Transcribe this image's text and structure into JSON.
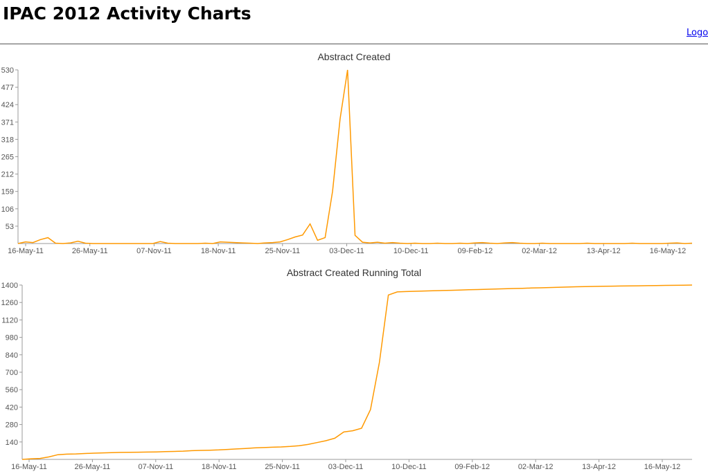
{
  "header": {
    "title": "IPAC 2012 Activity Charts",
    "logout_label": "Logo"
  },
  "colors": {
    "series": "#ff9900",
    "axis": "#999999",
    "text": "#555555",
    "link": "#0000ee"
  },
  "chart_data": [
    {
      "type": "line",
      "title": "Abstract Created",
      "xlabel": "",
      "ylabel": "",
      "ylim": [
        0,
        530
      ],
      "yticks": [
        53,
        106,
        159,
        212,
        265,
        318,
        371,
        424,
        477,
        530
      ],
      "xtick_labels": [
        "16-May-11",
        "26-May-11",
        "07-Nov-11",
        "18-Nov-11",
        "25-Nov-11",
        "03-Dec-11",
        "10-Dec-11",
        "09-Feb-12",
        "02-Mar-12",
        "13-Apr-12",
        "16-May-12"
      ],
      "grid": false,
      "series": [
        {
          "values": [
            0,
            5,
            3,
            12,
            18,
            1,
            0,
            2,
            7,
            1,
            0,
            0,
            0,
            0,
            0,
            0,
            0,
            0,
            0,
            6,
            1,
            0,
            0,
            0,
            0,
            1,
            0,
            5,
            4,
            3,
            2,
            1,
            0,
            2,
            3,
            5,
            12,
            20,
            26,
            60,
            10,
            18,
            160,
            380,
            530,
            25,
            4,
            2,
            4,
            1,
            3,
            1,
            0,
            1,
            0,
            0,
            1,
            0,
            0,
            1,
            0,
            2,
            3,
            1,
            0,
            2,
            3,
            1,
            0,
            0,
            1,
            0,
            0,
            0,
            0,
            0,
            1,
            0,
            0,
            0,
            0,
            0,
            1,
            0,
            0,
            0,
            0,
            1,
            2,
            0,
            1
          ]
        }
      ]
    },
    {
      "type": "line",
      "title": "Abstract Created Running Total",
      "xlabel": "",
      "ylabel": "",
      "ylim": [
        0,
        1400
      ],
      "yticks": [
        140,
        280,
        420,
        560,
        700,
        840,
        980,
        1120,
        1260,
        1400
      ],
      "xtick_labels": [
        "16-May-11",
        "26-May-11",
        "07-Nov-11",
        "18-Nov-11",
        "25-Nov-11",
        "03-Dec-11",
        "10-Dec-11",
        "09-Feb-12",
        "02-Mar-12",
        "13-Apr-12",
        "16-May-12"
      ],
      "grid": false,
      "series": [
        {
          "values": [
            0,
            5,
            8,
            20,
            38,
            42,
            44,
            47,
            50,
            52,
            54,
            56,
            57,
            58,
            59,
            60,
            62,
            64,
            66,
            70,
            72,
            74,
            76,
            80,
            84,
            88,
            92,
            95,
            98,
            100,
            104,
            110,
            120,
            135,
            150,
            170,
            220,
            230,
            250,
            400,
            780,
            1320,
            1345,
            1348,
            1350,
            1352,
            1354,
            1356,
            1358,
            1360,
            1362,
            1364,
            1366,
            1368,
            1370,
            1372,
            1374,
            1376,
            1378,
            1380,
            1382,
            1384,
            1386,
            1388,
            1389,
            1390,
            1391,
            1392,
            1393,
            1394,
            1395,
            1396,
            1397,
            1398,
            1399,
            1400
          ]
        }
      ]
    }
  ]
}
